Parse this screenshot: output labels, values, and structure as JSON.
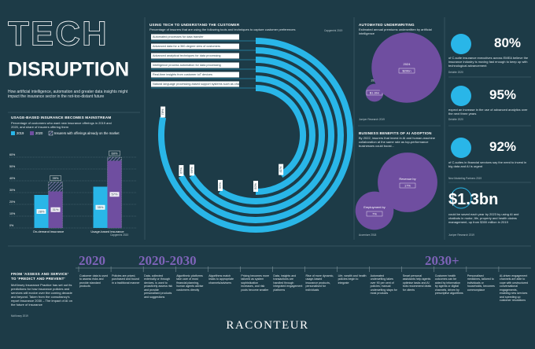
{
  "header": {
    "title_1": "TECH",
    "title_2": "DISRUPTION",
    "subtitle": "How artificial intelligence, automation and greater data insights might impact the insurance sector in the not-too-distant future"
  },
  "chart_data": [
    {
      "type": "bar",
      "title": "USAGE-BASED INSURANCE BECOMES MAINSTREAM",
      "subtitle": "Percentage of customers who want new insurance offerings in 2019 and 2020, and share of insurers offering them",
      "source": "Capgemini 2020",
      "categories": [
        "On-demand insurance",
        "Usage-based insurance"
      ],
      "series": [
        {
          "name": "2019",
          "color": "#29b6e8",
          "values": [
            28,
            35
          ],
          "value_labels": [
            "28%",
            "35%"
          ]
        },
        {
          "name": "2020",
          "color": "#6f4ea0",
          "values": [
            31,
            57
          ],
          "value_labels": [
            "31%",
            "57%"
          ]
        },
        {
          "name": "Insurers with offerings already on the market",
          "color": "#ffffff",
          "pattern": "hatched",
          "values": [
            39,
            60
          ],
          "value_labels": [
            "39%",
            "60%"
          ]
        }
      ],
      "ylim": [
        0,
        60
      ],
      "yticks": [
        {
          "value": 0,
          "label": "0%"
        },
        {
          "value": 10,
          "label": "10%"
        },
        {
          "value": 20,
          "label": "20%"
        },
        {
          "value": 30,
          "label": "30%"
        },
        {
          "value": 40,
          "label": "40%"
        },
        {
          "value": 50,
          "label": "50%"
        },
        {
          "value": 60,
          "label": "60%"
        }
      ],
      "grid": true
    },
    {
      "type": "radial_bar",
      "title": "USING TECH TO UNDERSTAND THE CUSTOMER",
      "subtitle": "Percentage of insurers that are using the following tools and techniques to capture customer preferences",
      "source": "Capgemini 2019",
      "categories": [
        "Automated processes for data transfer",
        "Advanced data for a 360-degree view of customers",
        "Advanced analytical techniques for data processing",
        "Intelligence process automation for data processing",
        "Real-time insights from customer IoT devices",
        "Natural language processing-based support systems such as chatbots"
      ],
      "values": [
        78,
        67,
        66,
        59,
        50,
        41
      ],
      "value_labels": [
        "78%",
        "67%",
        "66%",
        "59%",
        "50%",
        "41%"
      ],
      "ylim": [
        0,
        100
      ],
      "color": "#29b6e8"
    },
    {
      "type": "bubble",
      "title": "AUTOMATED UNDERWRITING",
      "subtitle": "Estimated annual premiums underwritten by artificial intelligence",
      "source": "Juniper Research 2019",
      "categories": [
        "2019",
        "2024"
      ],
      "values": [
        1.3,
        20
      ],
      "value_labels": [
        "$1.3bn",
        "$20bn"
      ],
      "color": "#6f4ea0"
    },
    {
      "type": "bubble",
      "title": "BUSINESS BENEFITS OF AI ADOPTION",
      "subtitle": "By 2022, insurers that invest in AI and human-machine collaboration at the same rate as top-performance businesses could boost...",
      "source": "Accenture 2018",
      "categories": [
        "Employment by",
        "Revenue by"
      ],
      "values": [
        7,
        17
      ],
      "value_labels": [
        "7%",
        "17%"
      ],
      "color": "#6f4ea0"
    }
  ],
  "stats": [
    {
      "value": "80%",
      "text": "of C-suite insurance executives across EMEA believe the insurance industry is moving fast enough to keep up with technological advancement",
      "source": "Deloitte 2020"
    },
    {
      "value": "95%",
      "text": "expect an increase in the use of advanced analytics over the next three years",
      "source": "Deloitte 2020"
    },
    {
      "value": "92%",
      "text": "of C-suites in financial services say the need to invest in big data and AI is urgent",
      "source": "New Marketing Partners 2019"
    },
    {
      "value": "$1.3bn",
      "text": "could be saved each year by 2023 by using AI and chatbots in motor, life, property and health claims management, up from $300 million in 2019",
      "source": "Juniper Research 2019"
    }
  ],
  "timeline": {
    "title": "FROM 'ASSESS AND SERVICE' TO 'PREDICT AND PREVENT'",
    "text": "McKinsey Insurance Practice has set out its predictions for how insurance policies and services will evolve over the coming decade and beyond. Taken from the consultancy's report Insurance 2030 – The impact of AI on the future of insurance",
    "source": "McKinsey 2019",
    "periods": [
      "2020",
      "2020-2030",
      "2030+"
    ],
    "items": [
      "Customer data is used to assess risks and provide standard products",
      "Policies are priced, purchased and bound in a traditional manner",
      "Data, collected externally or through devices, is used to proactively assess risk and provide personalised products and suggestions",
      "Algorithmic platforms take care of most financial planning, human agents advise customers directly",
      "Algorithms match leads to appropriate channels/advisers",
      "Pricing becomes more tailored as system sophistication increases, and risk pools become smaller",
      "Data, insights and transactions are handled through integrated engagement platforms",
      "Rise of more dynamic, usage-based insurance products, personalised for individuals",
      "Life, wealth and health policies begin to integrate",
      "Automated underwriting takes over 90 per cent of policies; manual underwriting stays for most products",
      "Smart personal assistants help agents optimise tasks and AI bots recommend deals for clients",
      "Customer health outcomes can be aided by information by agents or digital channels, driven by prescriptive algorithms",
      "Personalised medicines, tailored to individuals or households, becomes commonplace",
      "AI-driven engagement channels are able to cope with unstructured conversational engagements, enabling new services and speeding up customer resolutions"
    ]
  },
  "footer": {
    "brand": "RACONTEUR"
  }
}
